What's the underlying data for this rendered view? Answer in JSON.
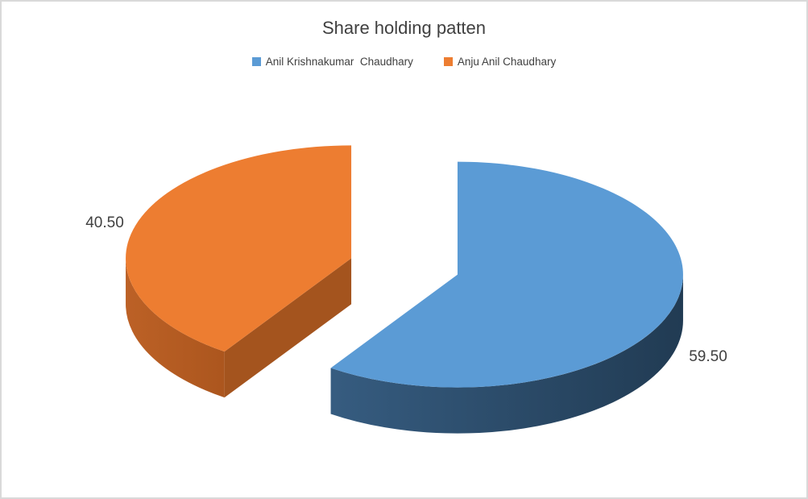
{
  "chart_data": {
    "type": "pie",
    "style": "3d-exploded",
    "title": "Share holding patten",
    "legend_position": "top",
    "start_angle_deg": 0,
    "direction": "clockwise",
    "background": "#FFFFFF",
    "border_color": "#D9D9D9",
    "text_color": "#404040",
    "series": [
      {
        "name": "Anil Krishnakumar  Chaudhary",
        "value": 59.5,
        "label": "59.50",
        "color": "#5B9BD5",
        "side_gradient": [
          "#365C80",
          "#213B53"
        ],
        "cut_color": "#2A4963"
      },
      {
        "name": "Anju Anil Chaudhary",
        "value": 40.5,
        "label": "40.50",
        "color": "#ED7D31",
        "side_gradient": [
          "#BC6126",
          "#AC561E"
        ],
        "cut_color": "#A4541E"
      }
    ]
  }
}
